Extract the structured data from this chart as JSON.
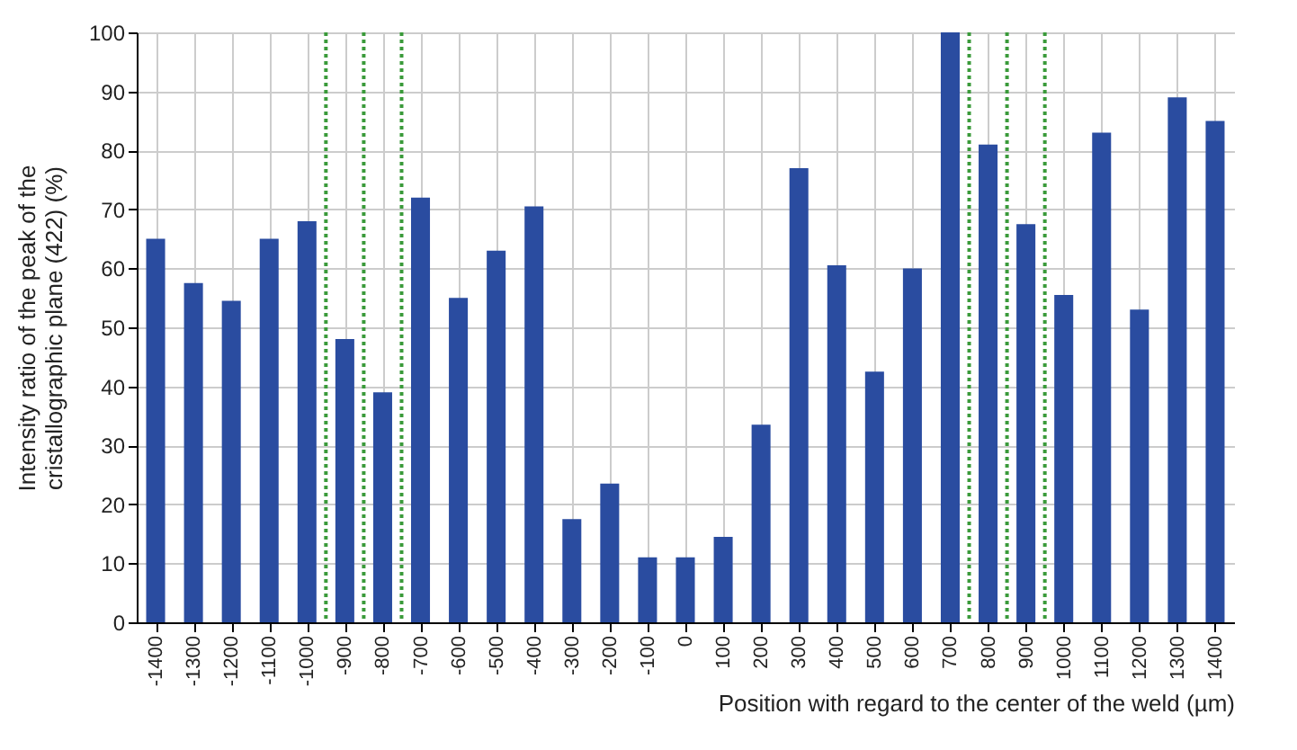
{
  "chart_data": {
    "type": "bar",
    "xlabel": "Position with regard to the center of the weld (µm)",
    "ylabel": "Intensity ratio of the peak  of the\ncristallographic plane (422) (%)",
    "x": [
      -1400,
      -1300,
      -1200,
      -1100,
      -1000,
      -900,
      -800,
      -700,
      -600,
      -500,
      -400,
      -300,
      -200,
      -100,
      0,
      100,
      200,
      300,
      400,
      500,
      600,
      700,
      800,
      900,
      1000,
      1100,
      1200,
      1300,
      1400
    ],
    "series": [
      {
        "color": "#2a4ca0",
        "values": [
          65,
          57.5,
          54.5,
          65,
          68,
          48,
          39,
          72,
          55,
          63,
          70.5,
          17.5,
          23.5,
          11,
          11,
          14.5,
          33.5,
          77,
          60.5,
          42.5,
          60,
          100,
          81,
          67.5,
          55.5,
          83,
          53,
          89,
          85
        ]
      }
    ],
    "xlim": [
      -1450,
      1450
    ],
    "xticks": [
      -1400,
      -1300,
      -1200,
      -1100,
      -1000,
      -900,
      -800,
      -700,
      -600,
      -500,
      -400,
      -300,
      -200,
      -100,
      0,
      100,
      200,
      300,
      400,
      500,
      600,
      700,
      800,
      900,
      1000,
      1100,
      1200,
      1300,
      1400
    ],
    "ylim": [
      0,
      100
    ],
    "yticks": [
      0,
      10,
      20,
      30,
      40,
      50,
      60,
      70,
      80,
      90,
      100
    ],
    "grid": true,
    "ref_lines": [
      {
        "axis": "x",
        "value": -950,
        "color": "#3a9a3a",
        "line_style": "dotted"
      },
      {
        "axis": "x",
        "value": -850,
        "color": "#3a9a3a",
        "line_style": "dotted"
      },
      {
        "axis": "x",
        "value": -750,
        "color": "#3a9a3a",
        "line_style": "dotted"
      },
      {
        "axis": "x",
        "value": 750,
        "color": "#3a9a3a",
        "line_style": "dotted"
      },
      {
        "axis": "x",
        "value": 850,
        "color": "#3a9a3a",
        "line_style": "dotted"
      },
      {
        "axis": "x",
        "value": 950,
        "color": "#3a9a3a",
        "line_style": "dotted"
      }
    ]
  }
}
